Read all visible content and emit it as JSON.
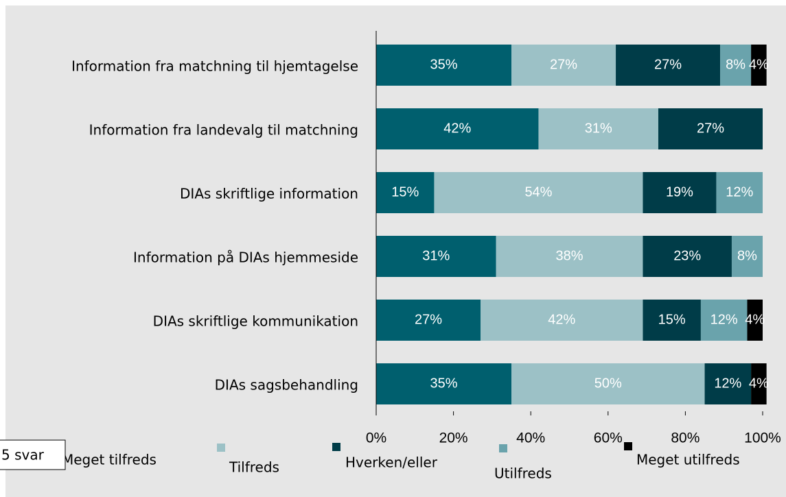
{
  "chart_data": {
    "type": "stacked-barh",
    "categories": [
      "Information fra matchning til hjemtagelse",
      "Information fra landevalg til matchning",
      "DIAs skriftlige information",
      "Information på DIAs hjemmeside",
      "DIAs skriftlige kommunikation",
      "DIAs sagsbehandling"
    ],
    "series": [
      {
        "name": "Meget tilfreds",
        "color": "#005f6e",
        "values": [
          35,
          42,
          15,
          31,
          27,
          35
        ],
        "value_labels": [
          "35%",
          "42%",
          "15%",
          "31%",
          "27%",
          "35%"
        ]
      },
      {
        "name": "Tilfreds",
        "color": "#9cc1c6",
        "values": [
          27,
          31,
          54,
          38,
          42,
          50
        ],
        "value_labels": [
          "27%",
          "31%",
          "54%",
          "38%",
          "42%",
          "50%"
        ]
      },
      {
        "name": "Hverken/eller",
        "color": "#003c48",
        "values": [
          27,
          27,
          19,
          23,
          15,
          12
        ],
        "value_labels": [
          "27%",
          "27%",
          "19%",
          "23%",
          "15%",
          "12%"
        ]
      },
      {
        "name": "Utilfreds",
        "color": "#6aa3ac",
        "values": [
          8,
          null,
          12,
          8,
          12,
          null
        ],
        "value_labels": [
          "8%",
          null,
          "12%",
          "8%",
          "12%",
          null
        ]
      },
      {
        "name": "Meget utilfreds",
        "color": "#000000",
        "values": [
          4,
          null,
          null,
          null,
          4,
          4
        ],
        "value_labels": [
          "4%",
          null,
          null,
          null,
          "4%",
          "4%"
        ]
      }
    ],
    "xlim": [
      0,
      100
    ],
    "xticks": [
      {
        "value": 0,
        "label": "0%"
      },
      {
        "value": 20,
        "label": "20%"
      },
      {
        "value": 40,
        "label": "40%"
      },
      {
        "value": 60,
        "label": "60%"
      },
      {
        "value": 80,
        "label": "80%"
      },
      {
        "value": 100,
        "label": "100%"
      }
    ],
    "annotation": "5 svar"
  }
}
